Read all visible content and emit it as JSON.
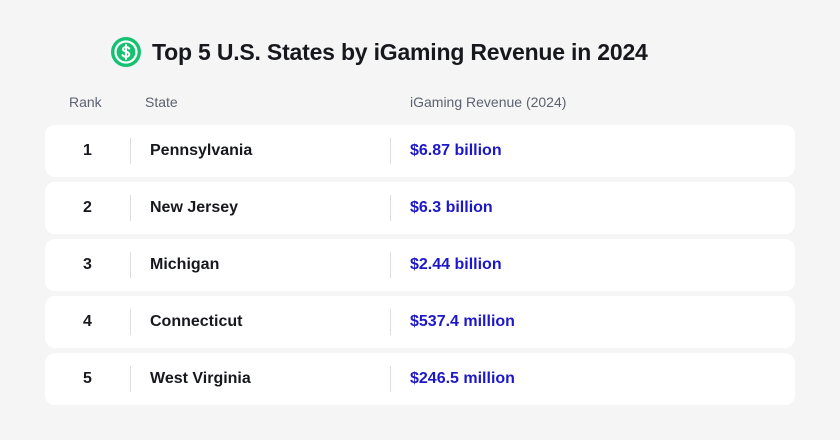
{
  "title": "Top 5 U.S. States by iGaming Revenue in 2024",
  "icon": "dollar-coin-icon",
  "colors": {
    "icon_green": "#16c172",
    "revenue_text": "#1c17c9",
    "background": "#f5f5f5",
    "row_background": "#ffffff"
  },
  "chart_data": {
    "type": "table",
    "title": "Top 5 U.S. States by iGaming Revenue in 2024",
    "columns": [
      "Rank",
      "State",
      "iGaming Revenue (2024)"
    ],
    "rows": [
      {
        "rank": "1",
        "state": "Pennsylvania",
        "revenue": "$6.87 billion"
      },
      {
        "rank": "2",
        "state": "New Jersey",
        "revenue": "$6.3 billion"
      },
      {
        "rank": "3",
        "state": "Michigan",
        "revenue": "$2.44 billion"
      },
      {
        "rank": "4",
        "state": "Connecticut",
        "revenue": "$537.4 million"
      },
      {
        "rank": "5",
        "state": "West Virginia",
        "revenue": "$246.5 million"
      }
    ]
  }
}
